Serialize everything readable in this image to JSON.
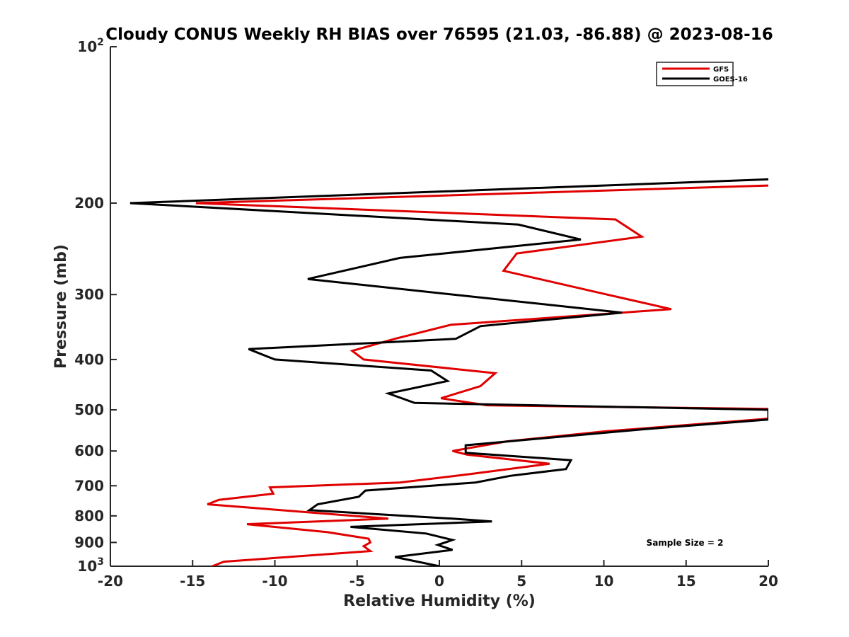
{
  "chart_data": {
    "type": "line",
    "title": "Cloudy CONUS Weekly RH BIAS over 76595 (21.03, -86.88) @ 2023-08-16",
    "xlabel": "Relative Humidity (%)",
    "ylabel": "Pressure (mb)",
    "xlim": [
      -20,
      20
    ],
    "ylim": [
      100,
      1000
    ],
    "yscale": "log",
    "y_reversed": true,
    "xticks": [
      "-20",
      "-15",
      "-10",
      "-5",
      "0",
      "5",
      "10",
      "15",
      "20"
    ],
    "xtick_values": [
      -20,
      -15,
      -10,
      -5,
      0,
      5,
      10,
      15,
      20
    ],
    "yticks": [
      {
        "value": 100,
        "base": "10",
        "exp": "2"
      },
      {
        "value": 200,
        "label": "200"
      },
      {
        "value": 300,
        "label": "300"
      },
      {
        "value": 400,
        "label": "400"
      },
      {
        "value": 500,
        "label": "500"
      },
      {
        "value": 600,
        "label": "600"
      },
      {
        "value": 700,
        "label": "700"
      },
      {
        "value": 800,
        "label": "800"
      },
      {
        "value": 900,
        "label": "900"
      },
      {
        "value": 1000,
        "base": "10",
        "exp": "3"
      }
    ],
    "legend": "top-right",
    "annotation": "Sample Size = 2",
    "series": [
      {
        "name": "GFS",
        "color": "#e00000",
        "points": [
          [
            20,
            185
          ],
          [
            -14.8,
            200
          ],
          [
            10.7,
            215
          ],
          [
            12.3,
            232
          ],
          [
            4.7,
            250
          ],
          [
            3.9,
            270
          ],
          [
            10.2,
            300
          ],
          [
            14.1,
            320
          ],
          [
            0.7,
            343
          ],
          [
            -2.7,
            365
          ],
          [
            -5.3,
            385
          ],
          [
            -4.6,
            400
          ],
          [
            3.4,
            425
          ],
          [
            2.5,
            450
          ],
          [
            0.1,
            475
          ],
          [
            2.9,
            490
          ],
          [
            20,
            498
          ],
          [
            20,
            520
          ],
          [
            10.1,
            550
          ],
          [
            4.1,
            575
          ],
          [
            0.8,
            600
          ],
          [
            1.7,
            610
          ],
          [
            6.7,
            635
          ],
          [
            1.8,
            665
          ],
          [
            -2.4,
            690
          ],
          [
            -10.3,
            705
          ],
          [
            -10.1,
            725
          ],
          [
            -13.4,
            745
          ],
          [
            -14.1,
            760
          ],
          [
            -3.1,
            810
          ],
          [
            -11.7,
            830
          ],
          [
            -6.8,
            860
          ],
          [
            -4.3,
            885
          ],
          [
            -4.2,
            900
          ],
          [
            -4.6,
            915
          ],
          [
            -4.2,
            935
          ],
          [
            -13.1,
            980
          ],
          [
            -13.8,
            1000
          ]
        ]
      },
      {
        "name": "GOES-16",
        "color": "#000000",
        "points": [
          [
            20,
            180
          ],
          [
            -18.8,
            200
          ],
          [
            4.8,
            220
          ],
          [
            8.6,
            235
          ],
          [
            -2.4,
            255
          ],
          [
            -8.0,
            280
          ],
          [
            11.1,
            325
          ],
          [
            2.5,
            345
          ],
          [
            1.0,
            365
          ],
          [
            -11.6,
            382
          ],
          [
            -10.0,
            400
          ],
          [
            -0.5,
            420
          ],
          [
            0.5,
            440
          ],
          [
            -3.1,
            465
          ],
          [
            -1.5,
            485
          ],
          [
            20,
            500
          ],
          [
            20,
            522
          ],
          [
            12.4,
            545
          ],
          [
            1.6,
            585
          ],
          [
            1.6,
            605
          ],
          [
            8.0,
            625
          ],
          [
            7.7,
            650
          ],
          [
            4.3,
            670
          ],
          [
            2.2,
            690
          ],
          [
            -4.5,
            715
          ],
          [
            -4.9,
            735
          ],
          [
            -7.4,
            760
          ],
          [
            -7.9,
            780
          ],
          [
            0.8,
            810
          ],
          [
            3.2,
            820
          ],
          [
            -5.4,
            840
          ],
          [
            -0.8,
            865
          ],
          [
            0.8,
            890
          ],
          [
            -0.1,
            910
          ],
          [
            0.8,
            930
          ],
          [
            -2.7,
            960
          ],
          [
            0.0,
            1000
          ]
        ]
      }
    ]
  }
}
